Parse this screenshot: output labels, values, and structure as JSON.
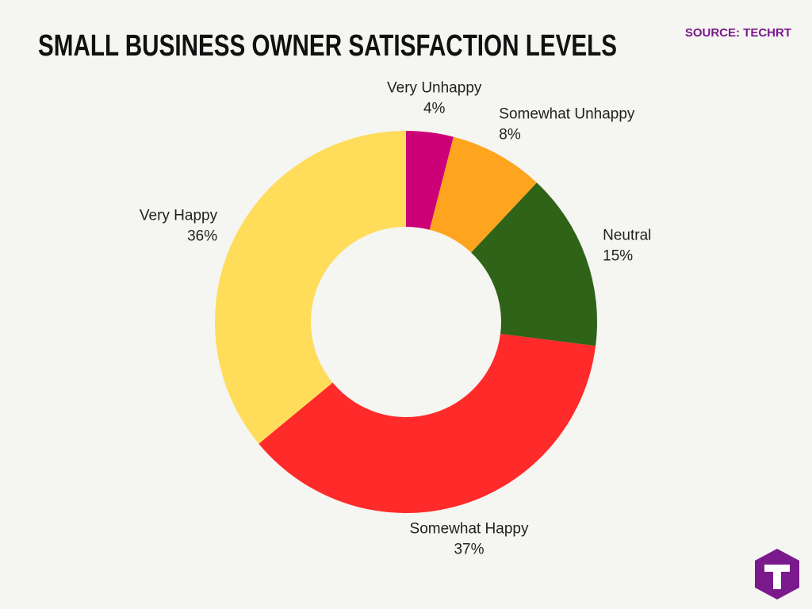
{
  "chart_data": {
    "type": "donut",
    "title": "SMALL BUSINESS OWNER SATISFACTION LEVELS",
    "source": "SOURCE: TECHRT",
    "categories": [
      "Very Unhappy",
      "Somewhat Unhappy",
      "Neutral",
      "Somewhat Happy",
      "Very Happy"
    ],
    "values": [
      4,
      8,
      15,
      37,
      36
    ],
    "value_labels": [
      "4%",
      "8%",
      "15%",
      "37%",
      "36%"
    ],
    "colors": [
      "#cc0077",
      "#ffa41f",
      "#2e6318",
      "#ff2a2a",
      "#ffdc5a"
    ]
  }
}
